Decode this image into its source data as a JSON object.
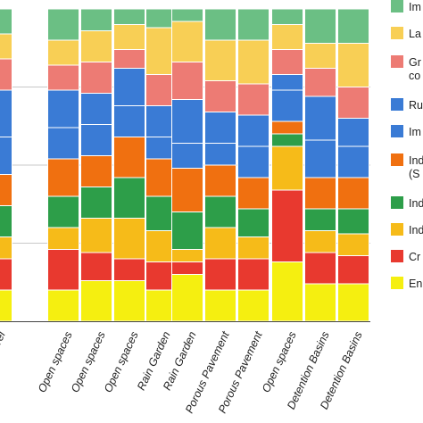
{
  "chart_data": {
    "type": "bar",
    "stacked": true,
    "normalized": true,
    "grid": true,
    "legend_position": "right",
    "categories": [
      "n Barrel",
      "Open spaces",
      "Open spaces",
      "Open spaces",
      "Rain Garden",
      "Rain Garden",
      "Porous Pavement",
      "Porous Pavement",
      "Open spaces",
      "Detention Basins",
      "Detention Basins"
    ],
    "ylim": [
      0,
      1
    ],
    "series": [
      {
        "name": "En",
        "color": "#f5ef10",
        "values": [
          0.1,
          0.1,
          0.13,
          0.13,
          0.1,
          0.15,
          0.1,
          0.1,
          0.19,
          0.12,
          0.12
        ]
      },
      {
        "name": "Cr",
        "color": "#e8392f",
        "values": [
          0.1,
          0.13,
          0.09,
          0.07,
          0.09,
          0.04,
          0.1,
          0.1,
          0.23,
          0.1,
          0.09
        ]
      },
      {
        "name": "Ind",
        "color": "#f6bb19",
        "values": [
          0.07,
          0.07,
          0.11,
          0.13,
          0.1,
          0.04,
          0.1,
          0.07,
          0.14,
          0.07,
          0.07
        ]
      },
      {
        "name": "Ind",
        "color": "#2d9e49",
        "values": [
          0.1,
          0.1,
          0.1,
          0.13,
          0.11,
          0.12,
          0.1,
          0.09,
          0.04,
          0.07,
          0.08
        ]
      },
      {
        "name": "Ind (S",
        "color": "#f07010",
        "values": [
          0.1,
          0.12,
          0.1,
          0.13,
          0.12,
          0.14,
          0.1,
          0.1,
          0.04,
          0.1,
          0.1
        ]
      },
      {
        "name": "Im",
        "color": "#3a7bd5",
        "values": [
          0.12,
          0.1,
          0.1,
          0.1,
          0.07,
          0.08,
          0.07,
          0.1,
          0.1,
          0.12,
          0.1
        ]
      },
      {
        "name": "Ru",
        "color": "#3a7bd5",
        "values": [
          0.15,
          0.12,
          0.1,
          0.12,
          0.1,
          0.14,
          0.1,
          0.1,
          0.05,
          0.14,
          0.09
        ]
      },
      {
        "name": "Gr co",
        "color": "#ed7b74",
        "values": [
          0.1,
          0.08,
          0.1,
          0.06,
          0.1,
          0.12,
          0.1,
          0.1,
          0.08,
          0.09,
          0.1
        ]
      },
      {
        "name": "La",
        "color": "#f8cf55",
        "values": [
          0.08,
          0.08,
          0.1,
          0.08,
          0.15,
          0.13,
          0.13,
          0.14,
          0.08,
          0.08,
          0.14
        ]
      },
      {
        "name": "Im",
        "color": "#6bbf84",
        "values": [
          0.08,
          0.1,
          0.07,
          0.05,
          0.06,
          0.04,
          0.1,
          0.1,
          0.05,
          0.11,
          0.11
        ]
      }
    ],
    "legend": [
      {
        "label": "Im",
        "color": "#6bbf84"
      },
      {
        "label": "La",
        "color": "#f8cf55"
      },
      {
        "label": "Gr",
        "label2": "co",
        "color": "#ed7b74"
      },
      {
        "label": "Ru",
        "color": "#3a7bd5"
      },
      {
        "label": "Im",
        "color": "#3a7bd5"
      },
      {
        "label": "Ind",
        "label2": "(S",
        "color": "#f07010"
      },
      {
        "label": "Ind",
        "color": "#2d9e49"
      },
      {
        "label": "Ind",
        "color": "#f6bb19"
      },
      {
        "label": "Cr",
        "color": "#e8392f"
      },
      {
        "label": "En",
        "color": "#f5ef10"
      }
    ]
  }
}
